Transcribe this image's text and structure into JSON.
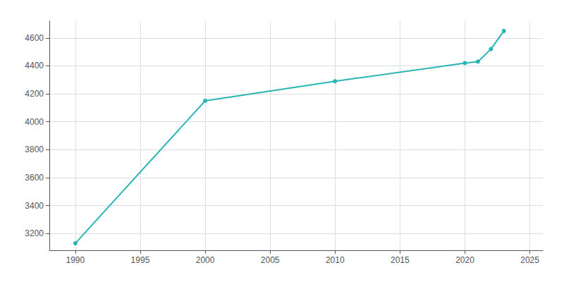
{
  "chart_data": {
    "type": "line",
    "x": [
      1990,
      2000,
      2010,
      2020,
      2021,
      2022,
      2023
    ],
    "values": [
      3130,
      4150,
      4290,
      4420,
      4430,
      4520,
      4650
    ],
    "color": "#2ab5b5",
    "marker": "circle",
    "xlim": [
      1988,
      2026
    ],
    "ylim": [
      3080,
      4720
    ],
    "xticks": [
      1990,
      1995,
      2000,
      2005,
      2010,
      2015,
      2020,
      2025
    ],
    "yticks": [
      3200,
      3400,
      3600,
      3800,
      4000,
      4200,
      4400,
      4600
    ],
    "grid": true
  }
}
